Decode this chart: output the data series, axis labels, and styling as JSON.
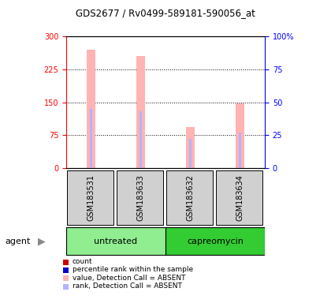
{
  "title": "GDS2677 / Rv0499-589181-590056_at",
  "samples": [
    "GSM183531",
    "GSM183633",
    "GSM183632",
    "GSM183634"
  ],
  "groups": [
    "untreated",
    "untreated",
    "capreomycin",
    "capreomycin"
  ],
  "bar_values": [
    270,
    255,
    93,
    147
  ],
  "rank_values": [
    45,
    43,
    22,
    27
  ],
  "left_ylim": [
    0,
    300
  ],
  "right_ylim": [
    0,
    100
  ],
  "left_yticks": [
    0,
    75,
    150,
    225,
    300
  ],
  "right_yticks": [
    0,
    25,
    50,
    75,
    100
  ],
  "bar_color_absent": "#ffb3b3",
  "rank_color_absent": "#b3b3ff",
  "group_colors": {
    "untreated": "#90ee90",
    "capreomycin": "#33cc33"
  },
  "legend_items": [
    {
      "color": "#cc0000",
      "label": "count"
    },
    {
      "color": "#0000cc",
      "label": "percentile rank within the sample"
    },
    {
      "color": "#ffb3b3",
      "label": "value, Detection Call = ABSENT"
    },
    {
      "color": "#b3b3ff",
      "label": "rank, Detection Call = ABSENT"
    }
  ]
}
